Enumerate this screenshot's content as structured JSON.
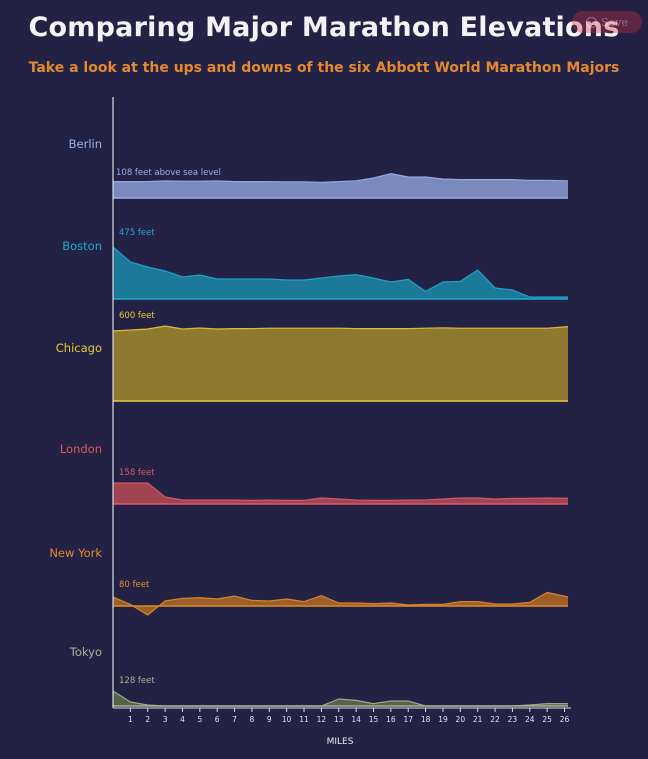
{
  "title": "Comparing Major Marathon Elevations",
  "subtitle": "Take a look at the ups and downs of the six Abbott World Marathon Majors",
  "save_label": "Save",
  "chart_data": {
    "type": "area",
    "xlabel": "MILES",
    "ylabel": "",
    "x_ticks": [
      1,
      2,
      3,
      4,
      5,
      6,
      7,
      8,
      9,
      10,
      11,
      12,
      13,
      14,
      15,
      16,
      17,
      18,
      19,
      20,
      21,
      22,
      23,
      24,
      25,
      26
    ],
    "xlim": [
      0,
      26.2
    ],
    "series": [
      {
        "name": "Berlin",
        "color": "#8a9bd3",
        "label_color": "#9ab0e6",
        "annotation": "108 feet above sea level",
        "x": [
          0,
          1,
          2,
          3,
          4,
          5,
          6,
          7,
          8,
          9,
          10,
          11,
          12,
          13,
          14,
          15,
          16,
          17,
          18,
          19,
          20,
          21,
          22,
          23,
          24,
          25,
          26.2
        ],
        "values": [
          0.82,
          0.82,
          0.82,
          0.86,
          0.84,
          0.84,
          0.86,
          0.82,
          0.82,
          0.82,
          0.81,
          0.81,
          0.78,
          0.82,
          0.86,
          1.0,
          1.22,
          1.05,
          1.05,
          0.95,
          0.92,
          0.92,
          0.92,
          0.92,
          0.88,
          0.88,
          0.86
        ]
      },
      {
        "name": "Boston",
        "color": "#1b88a8",
        "label_color": "#1eaad0",
        "annotation": "475 feet",
        "x": [
          0,
          1,
          2,
          3,
          4,
          5,
          6,
          7,
          8,
          9,
          10,
          11,
          12,
          13,
          14,
          15,
          16,
          17,
          18,
          19,
          20,
          21,
          22,
          23,
          24,
          25,
          26.2
        ],
        "values": [
          2.6,
          1.85,
          1.6,
          1.4,
          1.1,
          1.2,
          1.0,
          1.0,
          1.0,
          1.0,
          0.95,
          0.95,
          1.05,
          1.15,
          1.22,
          1.05,
          0.85,
          0.98,
          0.38,
          0.85,
          0.88,
          1.45,
          0.55,
          0.45,
          0.1,
          0.1,
          0.1
        ]
      },
      {
        "name": "Chicago",
        "color": "#a08a2c",
        "label_color": "#e7c93a",
        "annotation": "600 feet",
        "x": [
          0,
          1,
          2,
          3,
          4,
          5,
          6,
          7,
          8,
          9,
          10,
          11,
          12,
          13,
          14,
          15,
          16,
          17,
          18,
          19,
          20,
          21,
          22,
          23,
          24,
          25,
          26.2
        ],
        "values": [
          3.5,
          3.55,
          3.6,
          3.75,
          3.6,
          3.65,
          3.6,
          3.62,
          3.62,
          3.64,
          3.64,
          3.64,
          3.64,
          3.64,
          3.62,
          3.62,
          3.62,
          3.62,
          3.64,
          3.66,
          3.64,
          3.64,
          3.64,
          3.64,
          3.64,
          3.64,
          3.72
        ]
      },
      {
        "name": "London",
        "color": "#b74a55",
        "label_color": "#e0566a",
        "annotation": "158 feet",
        "x": [
          0,
          1,
          2,
          3,
          4,
          5,
          6,
          7,
          8,
          9,
          10,
          11,
          12,
          13,
          14,
          15,
          16,
          17,
          18,
          19,
          20,
          21,
          22,
          23,
          24,
          25,
          26.2
        ],
        "values": [
          1.05,
          1.05,
          1.05,
          0.35,
          0.2,
          0.2,
          0.2,
          0.2,
          0.18,
          0.2,
          0.18,
          0.18,
          0.3,
          0.25,
          0.2,
          0.18,
          0.18,
          0.2,
          0.2,
          0.25,
          0.3,
          0.3,
          0.25,
          0.28,
          0.28,
          0.3,
          0.28
        ]
      },
      {
        "name": "New York",
        "color": "#b06a22",
        "label_color": "#e2892f",
        "annotation": "80 feet",
        "x": [
          0,
          1,
          2,
          3,
          4,
          5,
          6,
          7,
          8,
          9,
          10,
          11,
          12,
          13,
          14,
          15,
          16,
          17,
          18,
          19,
          20,
          21,
          22,
          23,
          24,
          25,
          26.2
        ],
        "values": [
          0.45,
          0.08,
          -0.45,
          0.25,
          0.38,
          0.42,
          0.35,
          0.5,
          0.28,
          0.25,
          0.35,
          0.22,
          0.52,
          0.15,
          0.15,
          0.12,
          0.15,
          0.05,
          0.08,
          0.08,
          0.22,
          0.22,
          0.1,
          0.1,
          0.18,
          0.68,
          0.45
        ]
      },
      {
        "name": "Tokyo",
        "color": "#5f6e4a",
        "label_color": "#a6b490",
        "annotation": "128 feet",
        "x": [
          0,
          1,
          2,
          3,
          4,
          5,
          6,
          7,
          8,
          9,
          10,
          11,
          12,
          13,
          14,
          15,
          16,
          17,
          18,
          19,
          20,
          21,
          22,
          23,
          24,
          25,
          26.2
        ],
        "values": [
          0.75,
          0.2,
          0.05,
          0.0,
          0.0,
          0.0,
          0.0,
          0.0,
          0.0,
          0.0,
          0.0,
          0.0,
          0.0,
          0.35,
          0.28,
          0.12,
          0.25,
          0.25,
          0.0,
          0.0,
          0.0,
          0.0,
          0.0,
          0.0,
          0.05,
          0.12,
          0.12
        ]
      }
    ]
  }
}
